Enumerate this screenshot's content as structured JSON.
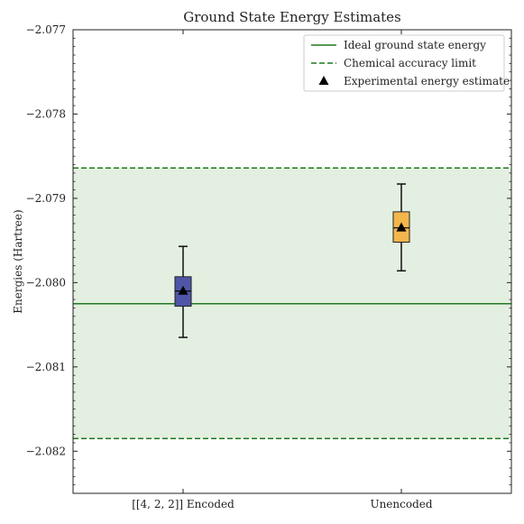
{
  "chart_data": {
    "type": "box",
    "title": "Ground State Energy Estimates",
    "xlabel": "",
    "ylabel": "Energies (Hartree)",
    "ylim": [
      -2.0825,
      -2.077
    ],
    "yticks": [
      -2.082,
      -2.081,
      -2.08,
      -2.079,
      -2.078,
      -2.077
    ],
    "ytick_labels": [
      "−2.082",
      "−2.081",
      "−2.080",
      "−2.079",
      "−2.078",
      "−2.077"
    ],
    "categories": [
      "[[4, 2, 2]] Encoded",
      "Unencoded"
    ],
    "boxes": [
      {
        "category": "[[4, 2, 2]] Encoded",
        "whisker_low": -2.08065,
        "q1": -2.08028,
        "median": -2.0801,
        "q3": -2.07993,
        "whisker_high": -2.07957,
        "mean": -2.0801,
        "color": "#4f56a6"
      },
      {
        "category": "Unencoded",
        "whisker_low": -2.07986,
        "q1": -2.07952,
        "median": -2.07935,
        "q3": -2.07916,
        "whisker_high": -2.07883,
        "mean": -2.07935,
        "color": "#f2b64c"
      }
    ],
    "reference_lines": {
      "ideal": -2.08025,
      "accuracy_upper": -2.07864,
      "accuracy_lower": -2.08185
    },
    "band_color": "#e3efe0",
    "line_color": "#1f7a1f",
    "grid": false,
    "legend_position": "top-right",
    "legend": [
      {
        "label": "Ideal ground state energy",
        "style": "solid"
      },
      {
        "label": "Chemical accuracy limit",
        "style": "dashed"
      },
      {
        "label": "Experimental energy estimate",
        "style": "triangle"
      }
    ]
  }
}
